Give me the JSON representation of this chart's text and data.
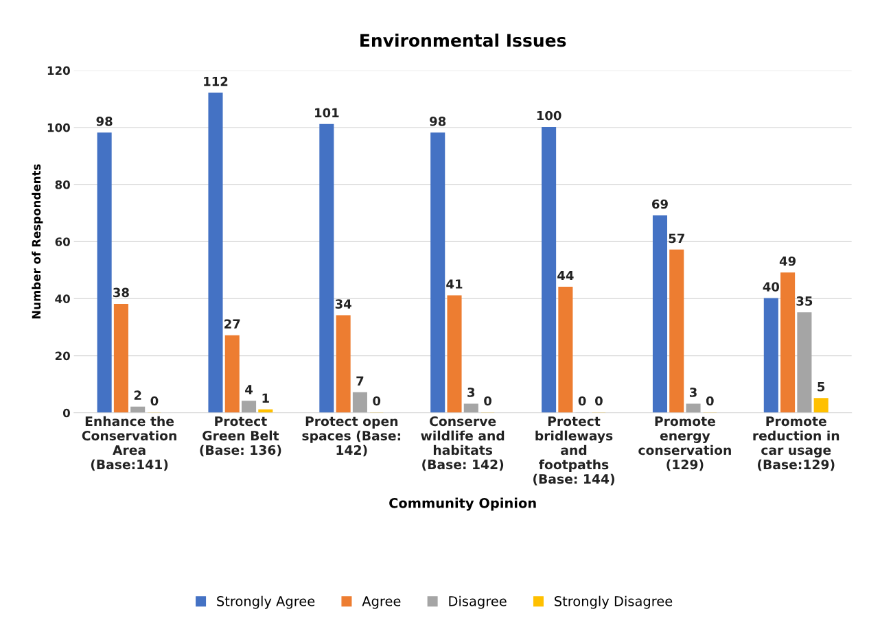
{
  "chart_data": {
    "type": "bar",
    "title": "Environmental Issues",
    "xlabel": "Community Opinion",
    "ylabel": "Number of Respondents",
    "categories": [
      "Enhance the\nConservation\nArea\n(Base:141)",
      "Protect\nGreen Belt\n(Base: 136)",
      "Protect open\nspaces (Base:\n142)",
      "Conserve\nwildlife and\nhabitats\n(Base: 142)",
      "Protect\nbridleways\nand\nfootpaths\n(Base: 144)",
      "Promote\nenergy\nconservation\n(129)",
      "Promote\nreduction in\ncar usage\n(Base:129)"
    ],
    "series": [
      {
        "name": "Strongly Agree",
        "color": "#4472c4",
        "values": [
          98,
          112,
          101,
          98,
          100,
          69,
          40
        ]
      },
      {
        "name": "Agree",
        "color": "#ed7d31",
        "values": [
          38,
          27,
          34,
          41,
          44,
          57,
          49
        ]
      },
      {
        "name": "Disagree",
        "color": "#a5a5a5",
        "values": [
          2,
          4,
          7,
          3,
          0,
          3,
          35
        ]
      },
      {
        "name": "Strongly Disagree",
        "color": "#ffc000",
        "values": [
          0,
          1,
          0,
          0,
          0,
          0,
          5
        ]
      }
    ],
    "ylim": [
      0,
      120
    ],
    "yticks": [
      0,
      20,
      40,
      60,
      80,
      100,
      120
    ],
    "grid": "y",
    "legend": "bottom",
    "data_labels": true
  }
}
